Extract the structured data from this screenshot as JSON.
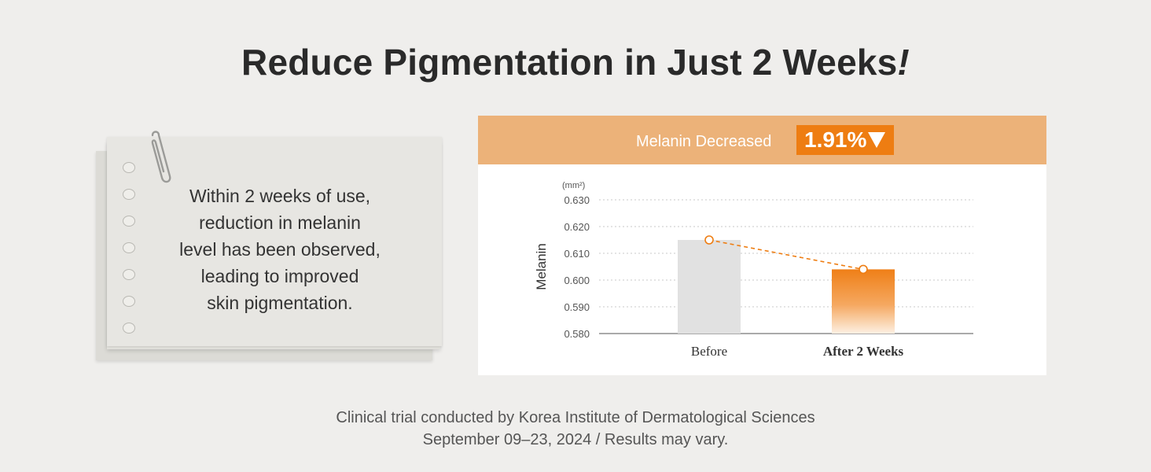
{
  "title": {
    "main": "Reduce Pigmentation in Just 2 Weeks",
    "exclaim": "!"
  },
  "note": {
    "lines": [
      "Within 2 weeks of use,",
      "reduction in melanin",
      "level has been observed,",
      "leading to improved",
      "skin pigmentation."
    ]
  },
  "panel": {
    "header_label": "Melanin Decreased",
    "badge_value": "1.91%",
    "accent_color": "#ee7d12",
    "header_color": "#ecb279"
  },
  "chart_data": {
    "type": "bar",
    "title": "",
    "xlabel": "",
    "ylabel": "Melanin",
    "unit": "(mm²)",
    "categories": [
      "Before",
      "After 2 Weeks"
    ],
    "values": [
      0.615,
      0.604
    ],
    "ylim": [
      0.58,
      0.63
    ],
    "yticks": [
      "0.630",
      "0.620",
      "0.610",
      "0.600",
      "0.590",
      "0.580"
    ],
    "ytick_values": [
      0.63,
      0.62,
      0.61,
      0.6,
      0.59,
      0.58
    ],
    "grid": true,
    "bar_colors": [
      "#e1e1e1",
      "#ef7f17"
    ],
    "trend_line": true
  },
  "footer": {
    "line1": "Clinical trial conducted by Korea Institute of Dermatological Sciences",
    "line2": "September 09–23, 2024 / Results may vary."
  }
}
